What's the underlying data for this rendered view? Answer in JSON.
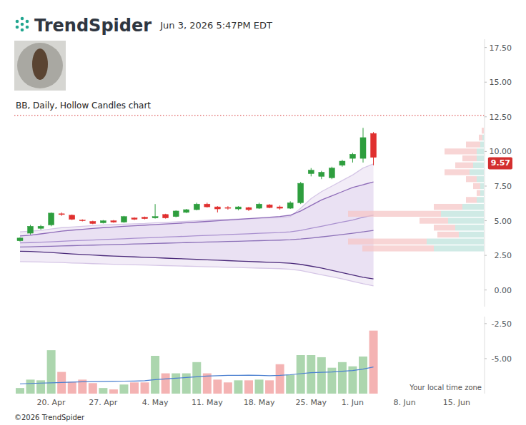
{
  "header": {
    "brand": "TrendSpider",
    "timestamp": "Jun 3, 2026 5:47PM EDT",
    "time_zone_note": "Your local time zone",
    "footer": "©2026 TrendSpider"
  },
  "chart_data": {
    "type": "candlestick",
    "title": "BB, Daily, Hollow Candles chart",
    "categories": [
      null,
      null,
      null,
      "20. Apr",
      null,
      null,
      null,
      null,
      "27. Apr",
      null,
      null,
      null,
      null,
      "4. May",
      null,
      null,
      null,
      null,
      "11. May",
      null,
      null,
      null,
      null,
      "18. May",
      null,
      null,
      null,
      null,
      "25. May",
      null,
      null,
      null,
      "1. Jun",
      null,
      null,
      null,
      null,
      "8. Jun",
      null,
      null,
      null,
      null,
      "15. Jun",
      null,
      null
    ],
    "open": [
      3.55,
      4.1,
      4.45,
      4.7,
      5.5,
      5.4,
      5.05,
      4.95,
      4.85,
      5.0,
      4.9,
      5.2,
      5.25,
      5.2,
      5.45,
      5.3,
      5.6,
      5.8,
      6.2,
      6.0,
      5.95,
      5.85,
      5.95,
      5.9,
      6.15,
      6.0,
      5.9,
      6.3,
      8.4,
      8.2,
      8.1,
      9.0,
      9.5,
      9.5,
      11.3,
      null,
      null,
      null,
      null,
      null,
      null,
      null,
      null,
      null,
      null
    ],
    "high": [
      3.8,
      4.7,
      4.7,
      5.6,
      5.6,
      5.45,
      5.1,
      5.0,
      5.05,
      5.05,
      5.35,
      5.25,
      5.3,
      6.2,
      5.5,
      5.75,
      5.85,
      6.3,
      6.3,
      6.05,
      6.05,
      6.05,
      6.0,
      6.3,
      6.2,
      6.1,
      6.4,
      7.8,
      8.8,
      8.6,
      8.9,
      9.4,
      9.9,
      11.7,
      11.4,
      null,
      null,
      null,
      null,
      null,
      null,
      null,
      null,
      null,
      null
    ],
    "low": [
      3.5,
      4.0,
      4.35,
      4.6,
      5.35,
      5.05,
      4.95,
      4.75,
      4.8,
      4.85,
      4.85,
      5.05,
      5.1,
      5.15,
      5.15,
      5.25,
      5.55,
      5.75,
      5.95,
      5.6,
      5.8,
      5.75,
      5.7,
      5.85,
      5.9,
      5.8,
      5.85,
      6.2,
      8.2,
      8.0,
      8.0,
      8.9,
      9.2,
      9.2,
      9.0,
      null,
      null,
      null,
      null,
      null,
      null,
      null,
      null,
      null,
      null
    ],
    "close": [
      3.75,
      4.6,
      4.6,
      5.55,
      5.45,
      5.1,
      5.0,
      4.8,
      5.0,
      4.9,
      5.3,
      5.1,
      5.15,
      5.3,
      5.2,
      5.7,
      5.8,
      6.2,
      6.0,
      5.85,
      5.9,
      6.0,
      5.8,
      6.2,
      5.95,
      5.9,
      6.3,
      7.7,
      8.65,
      8.5,
      8.8,
      9.3,
      9.8,
      11.0,
      9.57,
      null,
      null,
      null,
      null,
      null,
      null,
      null,
      null,
      null,
      null
    ],
    "ylim": [
      -1.2,
      18.1
    ],
    "yticks": [
      {
        "value": 0,
        "label": "0.00"
      },
      {
        "value": 2.5,
        "label": "2.50"
      },
      {
        "value": 5,
        "label": "5.00"
      },
      {
        "value": 7.5,
        "label": "7.50"
      },
      {
        "value": 10,
        "label": "10.00"
      },
      {
        "value": 12.5,
        "label": "12.50"
      },
      {
        "value": 15,
        "label": "15.00"
      },
      {
        "value": 17.5,
        "label": "17.50"
      }
    ],
    "series": [
      {
        "type": "line",
        "color": "#d5c6e6",
        "values": [
          4.2,
          4.25,
          4.3,
          4.4,
          4.5,
          4.55,
          4.6,
          4.65,
          4.7,
          4.72,
          4.75,
          4.78,
          4.8,
          4.85,
          4.88,
          4.92,
          4.96,
          5.0,
          5.05,
          5.08,
          5.1,
          5.12,
          5.14,
          5.16,
          5.2,
          5.22,
          5.3,
          5.9,
          6.6,
          7.1,
          7.5,
          7.9,
          8.3,
          8.8,
          9.1,
          null,
          null,
          null,
          null,
          null,
          null,
          null,
          null,
          null,
          null
        ]
      },
      {
        "type": "line",
        "color": "#8e6bb8",
        "values": [
          3.9,
          3.95,
          4.05,
          4.15,
          4.25,
          4.32,
          4.38,
          4.44,
          4.5,
          4.55,
          4.6,
          4.64,
          4.68,
          4.72,
          4.76,
          4.8,
          4.85,
          4.9,
          4.95,
          5.0,
          5.05,
          5.1,
          5.15,
          5.2,
          5.25,
          5.3,
          5.4,
          5.7,
          6.1,
          6.5,
          6.8,
          7.1,
          7.4,
          7.6,
          7.8,
          null,
          null,
          null,
          null,
          null,
          null,
          null,
          null,
          null,
          null
        ]
      },
      {
        "type": "line",
        "color": "#a990cf",
        "values": [
          3.4,
          3.42,
          3.45,
          3.48,
          3.52,
          3.55,
          3.58,
          3.61,
          3.64,
          3.67,
          3.7,
          3.73,
          3.76,
          3.79,
          3.82,
          3.85,
          3.88,
          3.91,
          3.94,
          3.97,
          4.0,
          4.03,
          4.06,
          4.09,
          4.12,
          4.15,
          4.2,
          4.3,
          4.45,
          4.6,
          4.75,
          4.9,
          5.05,
          5.25,
          5.4,
          null,
          null,
          null,
          null,
          null,
          null,
          null,
          null,
          null,
          null
        ]
      },
      {
        "type": "line",
        "color": "#8c70b8",
        "values": [
          3.1,
          3.12,
          3.14,
          3.16,
          3.18,
          3.2,
          3.22,
          3.24,
          3.26,
          3.28,
          3.3,
          3.32,
          3.34,
          3.36,
          3.38,
          3.4,
          3.42,
          3.44,
          3.46,
          3.48,
          3.5,
          3.52,
          3.54,
          3.56,
          3.58,
          3.6,
          3.63,
          3.68,
          3.75,
          3.83,
          3.91,
          4.0,
          4.1,
          4.2,
          4.3,
          null,
          null,
          null,
          null,
          null,
          null,
          null,
          null,
          null,
          null
        ]
      },
      {
        "type": "line",
        "color": "#4b2a7a",
        "values": [
          2.8,
          2.78,
          2.74,
          2.7,
          2.65,
          2.6,
          2.56,
          2.52,
          2.48,
          2.45,
          2.42,
          2.39,
          2.36,
          2.33,
          2.3,
          2.27,
          2.24,
          2.21,
          2.18,
          2.15,
          2.12,
          2.09,
          2.06,
          2.03,
          2.0,
          1.97,
          1.93,
          1.85,
          1.72,
          1.58,
          1.42,
          1.25,
          1.08,
          0.92,
          0.8,
          null,
          null,
          null,
          null,
          null,
          null,
          null,
          null,
          null,
          null
        ]
      },
      {
        "type": "line",
        "color": "#d5c6e6",
        "values": [
          2.05,
          2.04,
          2.02,
          2.0,
          1.98,
          1.95,
          1.93,
          1.9,
          1.88,
          1.86,
          1.84,
          1.82,
          1.8,
          1.78,
          1.76,
          1.74,
          1.72,
          1.7,
          1.68,
          1.66,
          1.64,
          1.62,
          1.6,
          1.58,
          1.56,
          1.54,
          1.5,
          1.4,
          1.25,
          1.1,
          0.95,
          0.8,
          0.62,
          0.45,
          0.3,
          null,
          null,
          null,
          null,
          null,
          null,
          null,
          null,
          null,
          null
        ]
      }
    ],
    "reference_lines": [
      {
        "value": 12.6,
        "color": "#e06060",
        "line_style": "dotted"
      }
    ],
    "last_price": 9.57,
    "volume": {
      "values": [
        0.8,
        2.0,
        1.9,
        6.2,
        3.1,
        1.7,
        2.0,
        1.5,
        0.8,
        0.6,
        1.3,
        1.6,
        1.6,
        5.4,
        2.9,
        2.9,
        2.9,
        4.5,
        2.9,
        2.0,
        1.6,
        1.9,
        1.9,
        2.0,
        1.9,
        4.2,
        2.7,
        5.5,
        5.5,
        5.2,
        3.7,
        4.5,
        3.9,
        5.3,
        9.0,
        null,
        null,
        null,
        null,
        null,
        null,
        null,
        null,
        null,
        null
      ],
      "ma": [
        1.4,
        1.45,
        1.5,
        1.55,
        1.6,
        1.65,
        1.7,
        1.72,
        1.74,
        1.76,
        1.78,
        1.8,
        1.85,
        2.0,
        2.1,
        2.2,
        2.3,
        2.4,
        2.5,
        2.55,
        2.6,
        2.62,
        2.64,
        2.6,
        2.55,
        2.6,
        2.7,
        2.85,
        3.0,
        3.05,
        3.1,
        3.2,
        3.3,
        3.5,
        3.8,
        null,
        null,
        null,
        null,
        null,
        null,
        null,
        null,
        null,
        null
      ],
      "ma_color": "#4a7fd0",
      "ylim": [
        0,
        11
      ],
      "yticks": [
        {
          "value": 10,
          "label": "-2.50"
        },
        {
          "value": 5,
          "label": "-5.00"
        }
      ]
    },
    "volume_profile": {
      "prices": [
        3.0,
        3.5,
        4.0,
        4.5,
        5.0,
        5.5,
        6.0,
        6.5,
        7.0,
        7.5,
        8.0,
        8.5,
        9.0,
        9.5,
        10.0,
        10.5,
        11.0,
        11.5
      ],
      "up": [
        70,
        80,
        35,
        40,
        50,
        60,
        30,
        10,
        5,
        5,
        10,
        20,
        15,
        10,
        10,
        5,
        2,
        0
      ],
      "down": [
        100,
        110,
        30,
        30,
        40,
        130,
        40,
        15,
        5,
        10,
        15,
        35,
        25,
        20,
        45,
        20,
        5,
        3
      ]
    }
  }
}
